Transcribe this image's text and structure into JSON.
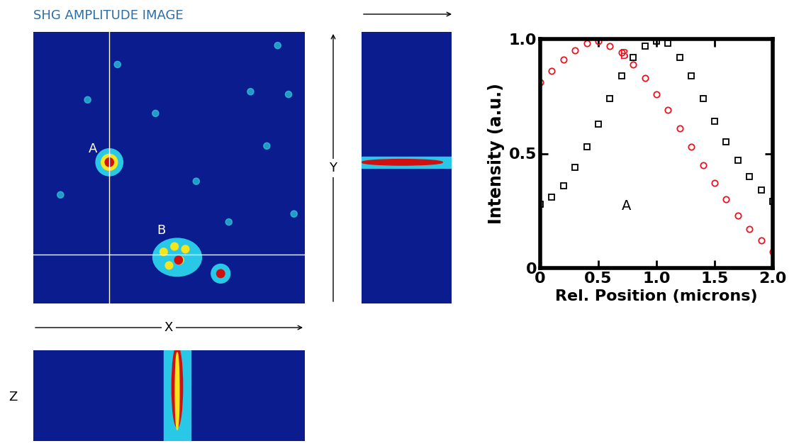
{
  "image_panel": {
    "title": "SHG AMPLITUDE IMAGE",
    "markers": [
      "A",
      "B"
    ],
    "axis_labels": {
      "x": "X",
      "y": "Y",
      "z": "Z"
    }
  },
  "chart_data": {
    "type": "line",
    "xlabel": "Rel. Position (microns)",
    "ylabel": "Intensity (a.u.)",
    "x": [
      0,
      0.1,
      0.2,
      0.3,
      0.4,
      0.5,
      0.6,
      0.7,
      0.8,
      0.9,
      1.0,
      1.1,
      1.2,
      1.3,
      1.4,
      1.5,
      1.6,
      1.7,
      1.8,
      1.9,
      2.0
    ],
    "series": [
      {
        "name": "A",
        "color": "#000000",
        "marker": "square",
        "line_style": "none",
        "values": [
          0.28,
          0.31,
          0.36,
          0.44,
          0.53,
          0.63,
          0.74,
          0.84,
          0.92,
          0.97,
          0.99,
          0.98,
          0.92,
          0.84,
          0.74,
          0.64,
          0.55,
          0.47,
          0.4,
          0.34,
          0.29
        ]
      },
      {
        "name": "B",
        "color": "#e8141e",
        "marker": "circle",
        "line_style": "none",
        "values": [
          0.81,
          0.86,
          0.91,
          0.95,
          0.98,
          0.99,
          0.97,
          0.94,
          0.89,
          0.83,
          0.76,
          0.69,
          0.61,
          0.53,
          0.45,
          0.37,
          0.3,
          0.23,
          0.17,
          0.12,
          0.07
        ]
      }
    ],
    "xlim": [
      0,
      2.0
    ],
    "ylim": [
      0,
      1.0
    ],
    "xticks": [
      0,
      0.5,
      {
        "value": 1.0,
        "label": "1.0"
      },
      1.5,
      {
        "value": 2.0,
        "label": "2.0"
      }
    ],
    "yticks": [
      0,
      0.5,
      {
        "value": 1.0,
        "label": "1.0"
      }
    ],
    "grid": false
  }
}
